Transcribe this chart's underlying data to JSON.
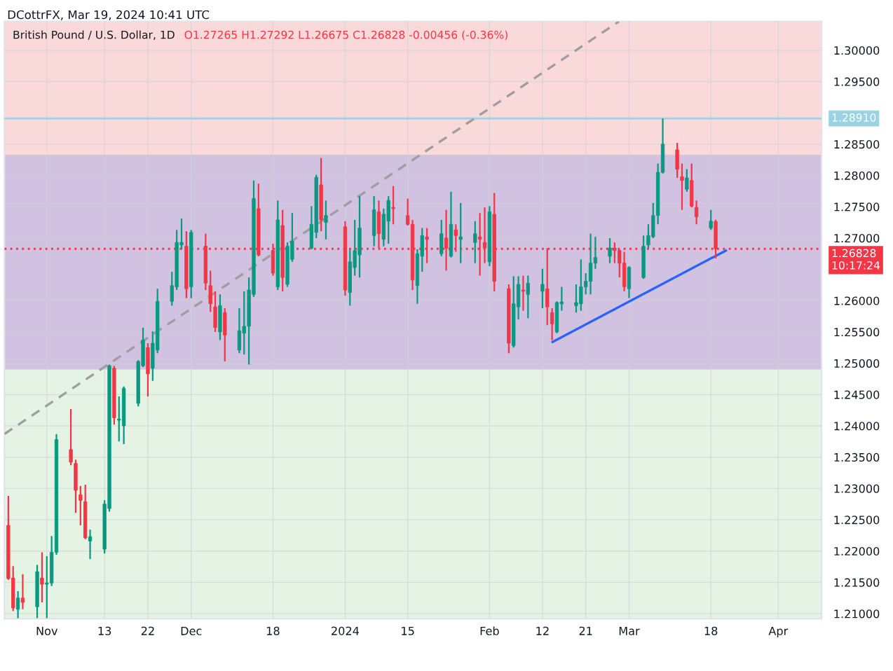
{
  "chart_data": {
    "type": "candlestick",
    "title": "British Pound / U.S. Dollar, 1D",
    "subtitle": "O1.27265 H1.27292 L1.26675 C1.26828 -0.00456 (-0.36%)",
    "annotations": [
      "DCottrFX, Mar 19, 2024 10:41 UTC"
    ],
    "x": [
      "2023-10-24",
      "2023-10-25",
      "2023-10-26",
      "2023-10-27",
      "2023-10-30",
      "2023-10-31",
      "2023-11-01",
      "2023-11-02",
      "2023-11-03",
      "2023-11-06",
      "2023-11-07",
      "2023-11-08",
      "2023-11-09",
      "2023-11-10",
      "2023-11-13",
      "2023-11-14",
      "2023-11-15",
      "2023-11-16",
      "2023-11-17",
      "2023-11-20",
      "2023-11-21",
      "2023-11-22",
      "2023-11-23",
      "2023-11-24",
      "2023-11-27",
      "2023-11-28",
      "2023-11-29",
      "2023-11-30",
      "2023-12-01",
      "2023-12-04",
      "2023-12-05",
      "2023-12-06",
      "2023-12-07",
      "2023-12-08",
      "2023-12-11",
      "2023-12-12",
      "2023-12-13",
      "2023-12-14",
      "2023-12-15",
      "2023-12-18",
      "2023-12-19",
      "2023-12-20",
      "2023-12-21",
      "2023-12-22",
      "2023-12-26",
      "2023-12-27",
      "2023-12-28",
      "2023-12-29",
      "2024-01-02",
      "2024-01-03",
      "2024-01-04",
      "2024-01-05",
      "2024-01-08",
      "2024-01-09",
      "2024-01-10",
      "2024-01-11",
      "2024-01-12",
      "2024-01-15",
      "2024-01-16",
      "2024-01-17",
      "2024-01-18",
      "2024-01-19",
      "2024-01-22",
      "2024-01-23",
      "2024-01-24",
      "2024-01-25",
      "2024-01-26",
      "2024-01-29",
      "2024-01-30",
      "2024-01-31",
      "2024-02-01",
      "2024-02-02",
      "2024-02-05",
      "2024-02-06",
      "2024-02-07",
      "2024-02-08",
      "2024-02-09",
      "2024-02-12",
      "2024-02-13",
      "2024-02-14",
      "2024-02-15",
      "2024-02-16",
      "2024-02-19",
      "2024-02-20",
      "2024-02-21",
      "2024-02-22",
      "2024-02-23",
      "2024-02-26",
      "2024-02-27",
      "2024-02-28",
      "2024-02-29",
      "2024-03-01",
      "2024-03-04",
      "2024-03-05",
      "2024-03-06",
      "2024-03-07",
      "2024-03-08",
      "2024-03-11",
      "2024-03-12",
      "2024-03-13",
      "2024-03-14",
      "2024-03-15",
      "2024-03-18",
      "2024-03-19"
    ],
    "ohlc": [
      [
        1.2241,
        1.2288,
        1.2154,
        1.2156
      ],
      [
        1.2157,
        1.2176,
        1.2104,
        1.2109
      ],
      [
        1.2107,
        1.2136,
        1.2093,
        1.2125
      ],
      [
        1.2125,
        1.2163,
        1.2107,
        1.2118
      ],
      [
        1.2111,
        1.2178,
        1.2093,
        1.2167
      ],
      [
        1.2157,
        1.2198,
        1.2118,
        1.2147
      ],
      [
        1.2147,
        1.2192,
        1.2093,
        1.2149
      ],
      [
        1.2149,
        1.2224,
        1.2144,
        1.2198
      ],
      [
        1.2198,
        1.2387,
        1.2194,
        1.2378
      ],
      [
        1.2362,
        1.2427,
        1.2337,
        1.2342
      ],
      [
        1.234,
        1.2346,
        1.2261,
        1.2297
      ],
      [
        1.229,
        1.2304,
        1.2241,
        1.2281
      ],
      [
        1.2279,
        1.2306,
        1.2219,
        1.2221
      ],
      [
        1.2216,
        1.2234,
        1.2187,
        1.2223
      ],
      [
        1.2203,
        1.2281,
        1.2196,
        1.2275
      ],
      [
        1.2268,
        1.2498,
        1.2263,
        1.2496
      ],
      [
        1.2492,
        1.2496,
        1.2402,
        1.2413
      ],
      [
        1.2409,
        1.2447,
        1.2375,
        1.2411
      ],
      [
        1.24,
        1.2463,
        1.2371,
        1.246
      ],
      [
        1.2436,
        1.2505,
        1.2431,
        1.2503
      ],
      [
        1.2496,
        1.2557,
        1.2494,
        1.2537
      ],
      [
        1.2525,
        1.2532,
        1.2447,
        1.2483
      ],
      [
        1.2492,
        1.2551,
        1.2472,
        1.2532
      ],
      [
        1.2521,
        1.2619,
        1.2516,
        1.2599
      ],
      [
        1.2599,
        1.2646,
        1.2592,
        1.2624
      ],
      [
        1.2622,
        1.2713,
        1.2617,
        1.2693
      ],
      [
        1.2689,
        1.2731,
        1.2682,
        1.2693
      ],
      [
        1.2687,
        1.2711,
        1.2604,
        1.2619
      ],
      [
        1.2622,
        1.2713,
        1.2604,
        1.2709
      ],
      [
        1.2687,
        1.2707,
        1.2617,
        1.2628
      ],
      [
        1.2624,
        1.2648,
        1.2582,
        1.2595
      ],
      [
        1.259,
        1.2615,
        1.255,
        1.2557
      ],
      [
        1.255,
        1.261,
        1.2537,
        1.2592
      ],
      [
        1.2581,
        1.2588,
        1.2503,
        1.2545
      ],
      [
        1.2521,
        1.2588,
        1.2516,
        1.2552
      ],
      [
        1.2548,
        1.2615,
        1.2514,
        1.2559
      ],
      [
        1.2559,
        1.2637,
        1.2498,
        1.2617
      ],
      [
        1.261,
        1.2792,
        1.2606,
        1.2763
      ],
      [
        1.2747,
        1.2787,
        1.2671,
        1.2673
      ],
      [
        1.268,
        1.2691,
        1.264,
        1.2644
      ],
      [
        1.2622,
        1.276,
        1.2617,
        1.2729
      ],
      [
        1.272,
        1.2745,
        1.2615,
        1.2637
      ],
      [
        1.2626,
        1.2693,
        1.2622,
        1.2687
      ],
      [
        1.2666,
        1.274,
        1.2662,
        1.2695
      ],
      [
        1.2684,
        1.2751,
        1.2682,
        1.2722
      ],
      [
        1.2709,
        1.2801,
        1.27,
        1.2797
      ],
      [
        1.2785,
        1.2828,
        1.2711,
        1.2729
      ],
      [
        1.2725,
        1.276,
        1.2698,
        1.2736
      ],
      [
        1.2718,
        1.2727,
        1.2608,
        1.2617
      ],
      [
        1.2613,
        1.2682,
        1.2592,
        1.2662
      ],
      [
        1.2653,
        1.2729,
        1.264,
        1.268
      ],
      [
        1.2673,
        1.2767,
        1.2637,
        1.2716
      ],
      [
        1.2704,
        1.2767,
        1.2687,
        1.2745
      ],
      [
        1.2742,
        1.276,
        1.2684,
        1.2707
      ],
      [
        1.2698,
        1.2747,
        1.2687,
        1.2738
      ],
      [
        1.2727,
        1.2767,
        1.2691,
        1.276
      ],
      [
        1.2749,
        1.2783,
        1.2722,
        1.2747
      ],
      [
        1.2736,
        1.2763,
        1.272,
        1.2722
      ],
      [
        1.2722,
        1.2729,
        1.2617,
        1.2633
      ],
      [
        1.2624,
        1.2682,
        1.2595,
        1.2675
      ],
      [
        1.2671,
        1.2716,
        1.2646,
        1.2704
      ],
      [
        1.2702,
        1.2716,
        1.266,
        1.2698
      ],
      [
        1.2675,
        1.2729,
        1.2671,
        1.2707
      ],
      [
        1.27,
        1.2745,
        1.2648,
        1.2684
      ],
      [
        1.2671,
        1.2774,
        1.2669,
        1.2722
      ],
      [
        1.2713,
        1.2722,
        1.2678,
        1.2704
      ],
      [
        1.2698,
        1.2756,
        1.266,
        1.2702
      ],
      [
        1.2693,
        1.2727,
        1.266,
        1.2707
      ],
      [
        1.2702,
        1.274,
        1.264,
        1.2698
      ],
      [
        1.2693,
        1.2749,
        1.266,
        1.2684
      ],
      [
        1.2662,
        1.2751,
        1.2655,
        1.2742
      ],
      [
        1.2738,
        1.2772,
        1.2615,
        1.2631
      ],
      [
        1.2619,
        1.2626,
        1.2516,
        1.2532
      ],
      [
        1.2528,
        1.2639,
        1.2525,
        1.2595
      ],
      [
        1.259,
        1.2639,
        1.257,
        1.2626
      ],
      [
        1.2617,
        1.264,
        1.2584,
        1.2615
      ],
      [
        1.261,
        1.264,
        1.2572,
        1.2628
      ],
      [
        1.2615,
        1.2651,
        1.2588,
        1.2626
      ],
      [
        1.2619,
        1.2684,
        1.2561,
        1.259
      ],
      [
        1.2581,
        1.2588,
        1.2537,
        1.2563
      ],
      [
        1.255,
        1.2599,
        1.2548,
        1.2597
      ],
      [
        1.2595,
        1.2622,
        1.2584,
        1.2598
      ],
      [
        1.2592,
        1.2626,
        1.2581,
        1.2597
      ],
      [
        1.2595,
        1.2666,
        1.2584,
        1.2622
      ],
      [
        1.2622,
        1.2644,
        1.261,
        1.2631
      ],
      [
        1.2631,
        1.2707,
        1.261,
        1.266
      ],
      [
        1.266,
        1.2702,
        1.2651,
        1.2669
      ],
      [
        1.2671,
        1.27,
        1.266,
        1.2684
      ],
      [
        1.2684,
        1.2693,
        1.266,
        1.268
      ],
      [
        1.268,
        1.2682,
        1.2637,
        1.266
      ],
      [
        1.266,
        1.2678,
        1.2615,
        1.2622
      ],
      [
        1.2619,
        1.2655,
        1.2604,
        1.2653
      ],
      [
        1.2637,
        1.2704,
        1.2635,
        1.2687
      ],
      [
        1.2689,
        1.2722,
        1.2684,
        1.2704
      ],
      [
        1.2702,
        1.2756,
        1.27,
        1.2736
      ],
      [
        1.2736,
        1.2819,
        1.2722,
        1.2805
      ],
      [
        1.2805,
        1.2891,
        1.2803,
        1.285
      ],
      [
        1.2841,
        1.2852,
        1.2796,
        1.281
      ],
      [
        1.2798,
        1.2819,
        1.2745,
        1.2792
      ],
      [
        1.2778,
        1.281,
        1.2774,
        1.2796
      ],
      [
        1.2792,
        1.2819,
        1.2749,
        1.2751
      ],
      [
        1.2749,
        1.276,
        1.2722,
        1.2734
      ],
      [
        1.2716,
        1.2745,
        1.2713,
        1.2727
      ],
      [
        1.27265,
        1.27292,
        1.26675,
        1.26828
      ]
    ],
    "colors": [
      "#f23645",
      "#f23645",
      "#089981",
      "#f23645",
      "#089981",
      "#f23645",
      "#089981",
      "#089981",
      "#089981",
      "#f23645",
      "#f23645",
      "#f23645",
      "#f23645",
      "#089981",
      "#089981",
      "#089981",
      "#f23645",
      "#089981",
      "#089981",
      "#089981",
      "#089981",
      "#f23645",
      "#089981",
      "#089981",
      "#089981",
      "#089981",
      "#089981",
      "#f23645",
      "#089981",
      "#f23645",
      "#f23645",
      "#f23645",
      "#089981",
      "#f23645",
      "#089981",
      "#089981",
      "#089981",
      "#089981",
      "#f23645",
      "#f23645",
      "#089981",
      "#f23645",
      "#089981",
      "#089981",
      "#089981",
      "#089981",
      "#f23645",
      "#089981",
      "#f23645",
      "#089981",
      "#089981",
      "#089981",
      "#089981",
      "#f23645",
      "#089981",
      "#089981",
      "#f23645",
      "#f23645",
      "#f23645",
      "#089981",
      "#089981",
      "#f23645",
      "#089981",
      "#f23645",
      "#089981",
      "#f23645",
      "#089981",
      "#089981",
      "#f23645",
      "#f23645",
      "#089981",
      "#f23645",
      "#f23645",
      "#089981",
      "#089981",
      "#f23645",
      "#089981",
      "#089981",
      "#f23645",
      "#f23645",
      "#089981",
      "#089981",
      "#089981",
      "#089981",
      "#089981",
      "#089981",
      "#089981",
      "#089981",
      "#f23645",
      "#f23645",
      "#f23645",
      "#089981",
      "#089981",
      "#089981",
      "#089981",
      "#089981",
      "#089981",
      "#f23645",
      "#f23645",
      "#089981",
      "#f23645",
      "#f23645",
      "#089981",
      "#f23645"
    ],
    "series": [
      {
        "type": "line",
        "x": [
          "2023-10-23T04:48",
          "2024-02-27T21:36"
        ],
        "values": [
          1.2387,
          1.3046
        ],
        "color": "#9e9e9e",
        "line_style": "dashed"
      },
      {
        "type": "line",
        "x": [
          "2024-02-14T02:24",
          "2024-03-21T02:24"
        ],
        "values": [
          1.2534,
          1.268
        ],
        "color": "#2962ff",
        "line_style": "solid"
      }
    ],
    "bands": [
      {
        "axis": "y",
        "from": 1.2497,
        "to": 1.3046,
        "color": "#f9d9da"
      },
      {
        "axis": "y",
        "from": 1.2092,
        "to": 1.2497,
        "color": "#e4f3e4"
      },
      {
        "axis": "y",
        "from": 1.249,
        "to": 1.2833,
        "color": "#d2c2e2"
      }
    ],
    "ref_lines": [
      {
        "axis": "y",
        "value": 1.2891,
        "label": "1.28910",
        "color": "#9bd3e3",
        "line_style": "solid"
      },
      {
        "axis": "y",
        "value": 1.26828,
        "label": "1.26828\n10:17:24",
        "color": "#f23645",
        "line_style": "dotted"
      }
    ],
    "xlim": [
      "2023-10-23T04:48",
      "2024-04-10"
    ],
    "xticks": [
      {
        "value": "2023-11-01",
        "label": "Nov"
      },
      {
        "value": "2023-11-13",
        "label": "13"
      },
      {
        "value": "2023-11-22",
        "label": "22"
      },
      {
        "value": "2023-12-01",
        "label": "Dec"
      },
      {
        "value": "2023-12-18",
        "label": "18"
      },
      {
        "value": "2024-01-02",
        "label": "2024"
      },
      {
        "value": "2024-01-15",
        "label": "15"
      },
      {
        "value": "2024-02-01",
        "label": "Feb"
      },
      {
        "value": "2024-02-12",
        "label": "12"
      },
      {
        "value": "2024-02-21",
        "label": "21"
      },
      {
        "value": "2024-03-01",
        "label": "Mar"
      },
      {
        "value": "2024-03-18",
        "label": "18"
      },
      {
        "value": "2024-04-01",
        "label": "Apr"
      }
    ],
    "ylim": [
      1.2092,
      1.3046
    ],
    "yticks": [
      {
        "value": 1.21,
        "label": "1.21000"
      },
      {
        "value": 1.215,
        "label": "1.21500"
      },
      {
        "value": 1.22,
        "label": "1.22000"
      },
      {
        "value": 1.225,
        "label": "1.22500"
      },
      {
        "value": 1.23,
        "label": "1.23000"
      },
      {
        "value": 1.235,
        "label": "1.23500"
      },
      {
        "value": 1.24,
        "label": "1.24000"
      },
      {
        "value": 1.245,
        "label": "1.24500"
      },
      {
        "value": 1.25,
        "label": "1.25000"
      },
      {
        "value": 1.255,
        "label": "1.25500"
      },
      {
        "value": 1.26,
        "label": "1.26000"
      },
      {
        "value": 1.27,
        "label": "1.27000"
      },
      {
        "value": 1.275,
        "label": "1.27500"
      },
      {
        "value": 1.28,
        "label": "1.28000"
      },
      {
        "value": 1.285,
        "label": "1.28500"
      },
      {
        "value": 1.295,
        "label": "1.29500"
      },
      {
        "value": 1.3,
        "label": "1.30000"
      }
    ],
    "grid": true,
    "legend": false
  }
}
